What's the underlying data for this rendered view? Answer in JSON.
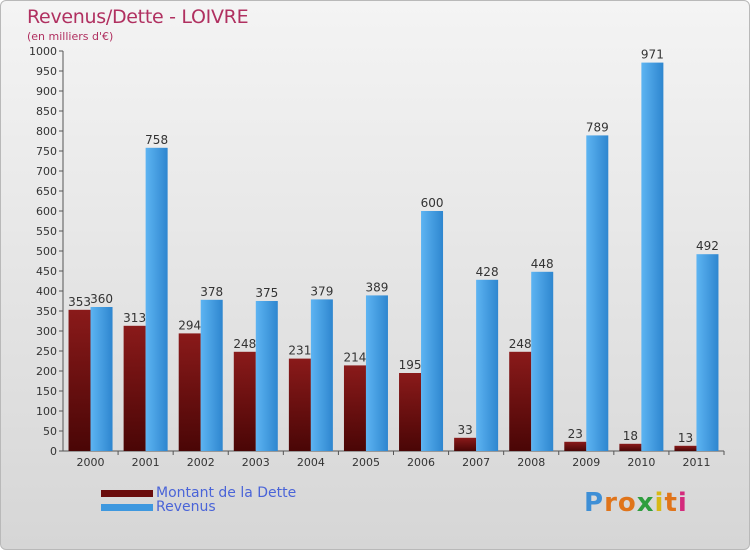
{
  "chart_data": {
    "type": "bar",
    "title": "Revenus/Dette - LOIVRE",
    "subtitle": "(en milliers d'€)",
    "categories": [
      "2000",
      "2001",
      "2002",
      "2003",
      "2004",
      "2005",
      "2006",
      "2007",
      "2008",
      "2009",
      "2010",
      "2011"
    ],
    "series": [
      {
        "name": "Montant de la Dette",
        "color": "#7a1010",
        "values": [
          353,
          313,
          294,
          248,
          231,
          214,
          195,
          33,
          248,
          23,
          18,
          13
        ]
      },
      {
        "name": "Revenus",
        "color": "#4aa3e6",
        "values": [
          360,
          758,
          378,
          375,
          379,
          389,
          600,
          428,
          448,
          789,
          971,
          492
        ]
      }
    ],
    "ylim": [
      0,
      1000
    ],
    "ytick_step": 50,
    "grid": false,
    "legend_position": "bottom-left"
  },
  "logo": {
    "text": "Proxiti"
  }
}
